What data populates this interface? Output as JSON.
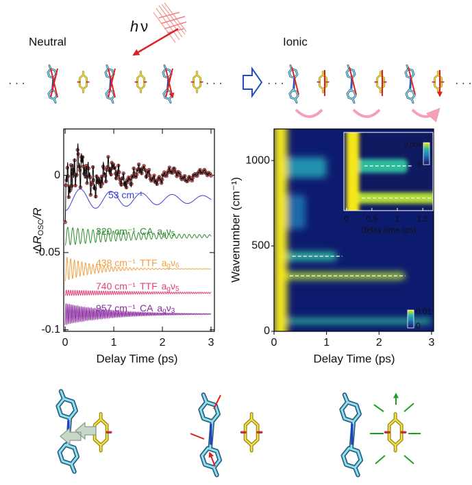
{
  "header": {
    "neutral": "Neutral",
    "ionic": "Ionic",
    "photon": {
      "h": "h",
      "nu": "ν"
    },
    "ellipsis": "· · ·"
  },
  "chart_data": [
    {
      "type": "oscillation",
      "xlabel": "Delay Time (ps)",
      "ylabel": {
        "delta": "Δ",
        "r": "R",
        "sub": "OSC",
        "end": "/R"
      },
      "xlim": [
        -0.03,
        3.07
      ],
      "ylim": [
        -0.101,
        0.03
      ],
      "xticks": [
        0,
        1,
        2,
        3
      ],
      "yticks": [
        0,
        -0.05,
        -0.1
      ],
      "measured_color": "#e85a5a",
      "fit_color": "#000000",
      "series": [
        {
          "name": "53 cm⁻¹",
          "color": "#3b3bd6",
          "frequency": 53,
          "baseline": -0.0155,
          "amplitude": 0.0075,
          "decay": 2.5
        },
        {
          "name": "320 cm⁻¹",
          "molecule": "CA",
          "mode": [
            "a",
            "g",
            "ν",
            "5"
          ],
          "color": "#2e8b2e",
          "frequency": 320,
          "baseline": -0.0394,
          "amplitude": 0.006,
          "decay": 1.6
        },
        {
          "name": "438 cm⁻¹",
          "molecule": "TTF",
          "mode": [
            "a",
            "g",
            "ν",
            "6"
          ],
          "color": "#f0a040",
          "frequency": 438,
          "baseline": -0.0606,
          "amplitude": 0.008,
          "decay": 0.6
        },
        {
          "name": "740 cm⁻¹",
          "molecule": "TTF",
          "mode": [
            "a",
            "g",
            "ν",
            "5"
          ],
          "color": "#e0407a",
          "frequency": 740,
          "baseline": -0.0761,
          "amplitude": 0.0018,
          "decay": 2
        },
        {
          "name": "957 cm⁻¹",
          "molecule": "CA",
          "mode": [
            "a",
            "g",
            "ν",
            "3"
          ],
          "color": "#8a2aa0",
          "frequency": 957,
          "baseline": -0.0898,
          "amplitude": 0.007,
          "decay": 0.9
        }
      ]
    },
    {
      "type": "heatmap",
      "xlabel": "Delay Time (ps)",
      "ylabel": "Wavenumber (cm⁻¹)",
      "xlim": [
        0,
        3.04
      ],
      "ylim": [
        0,
        1185
      ],
      "xticks": [
        0,
        1,
        2,
        3
      ],
      "yticks": [
        0,
        500,
        1000
      ],
      "onset": {
        "end": 0.25,
        "level": 1
      },
      "bands": [
        {
          "wavenumber": 960,
          "width": 120,
          "start": 0.1,
          "end": 1.0,
          "level": 0.45
        },
        {
          "wavenumber": 700,
          "width": 200,
          "start": 0.1,
          "end": 0.6,
          "level": 0.3
        },
        {
          "wavenumber": 440,
          "width": 50,
          "start": 0.05,
          "end": 1.2,
          "level": 0.62
        },
        {
          "wavenumber": 325,
          "width": 40,
          "start": 0.05,
          "end": 2.5,
          "level": 0.9
        },
        {
          "wavenumber": 60,
          "width": 30,
          "start": 0,
          "end": 3,
          "level": 0.62
        }
      ],
      "ridges": [
        {
          "wavenumber": 440,
          "x": [
            0.35,
            1.3
          ]
        },
        {
          "wavenumber": 325,
          "x": [
            0.3,
            2.5
          ]
        }
      ],
      "colorbar": {
        "ticks": [
          0,
          0.01
        ]
      },
      "inset": {
        "xlabel": "Delay time (ps)",
        "xlim": [
          -0.05,
          1.7
        ],
        "ylim": [
          280,
          560
        ],
        "xticks": [
          0,
          0.5,
          1,
          1.5
        ],
        "colorbar": {
          "ticks": [
            0,
            0.004
          ]
        }
      }
    }
  ]
}
